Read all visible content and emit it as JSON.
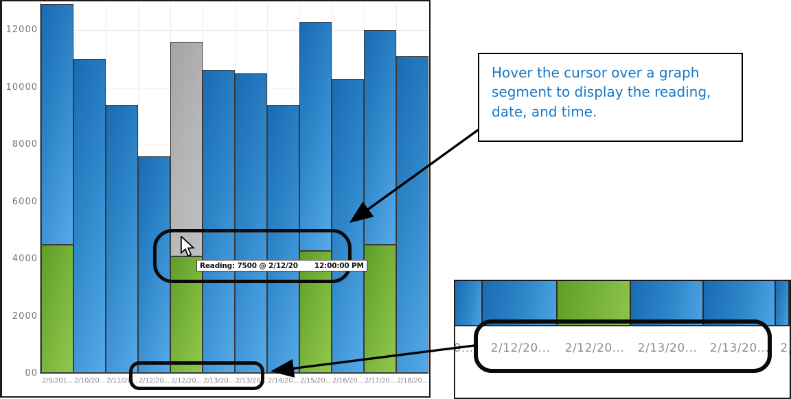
{
  "annotation_box": {
    "text": "Hover the cursor over a graph segment to display the reading, date, and time.",
    "text_color": "#1477c8"
  },
  "tooltip": {
    "prefix": "Reading: 7500 @ 2/12/20",
    "suffix": "12:00:00 PM",
    "reading_value": 7500
  },
  "inset": {
    "labels": [
      "0...",
      "2/12/20...",
      "2/12/20...",
      "2/13/20...",
      "2/13/20...",
      "2,"
    ],
    "cell_colors": [
      "blue",
      "blue",
      "green",
      "blue",
      "blue",
      "blue"
    ]
  },
  "chart_data": {
    "type": "bar",
    "stacked": true,
    "title": "",
    "xlabel": "",
    "ylabel": "",
    "ylim": [
      0,
      13000
    ],
    "grid": true,
    "yticks": [
      "12000",
      "10000",
      "8000",
      "6000",
      "4000",
      "2000",
      "00"
    ],
    "ytick_values": [
      12000,
      10000,
      8000,
      6000,
      4000,
      2000,
      0
    ],
    "categories": [
      "2/9/201...",
      "2/10/20...",
      "2/11/20...",
      "2/12/20...",
      "2/12/20...",
      "2/13/20...",
      "2/13/20...",
      "2/14/20...",
      "2/15/20...",
      "2/16/20...",
      "2/17/20...",
      "2/18/20..."
    ],
    "totals": [
      12900,
      11000,
      9400,
      7600,
      11600,
      10600,
      10500,
      9400,
      12300,
      10300,
      12000,
      11100
    ],
    "series": [
      {
        "name": "bottom-segment-green",
        "values": [
          4500,
          0,
          0,
          0,
          4100,
          0,
          0,
          0,
          4300,
          0,
          4500,
          0
        ]
      },
      {
        "name": "upper-segment",
        "values": [
          8400,
          11000,
          9400,
          7600,
          7500,
          10600,
          10500,
          9400,
          8000,
          10300,
          7500,
          11100
        ]
      }
    ],
    "highlighted_bar_index": 4,
    "colors": {
      "blue": "#2e86c9",
      "green": "#79b43a",
      "gray": "#b6b6b6",
      "gridline": "#ebebeb"
    }
  }
}
